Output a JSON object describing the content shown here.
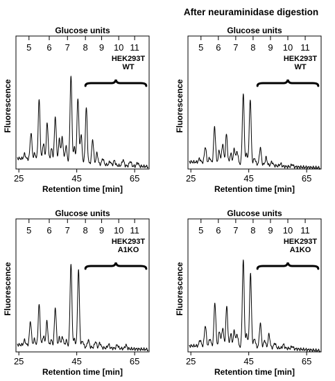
{
  "figure": {
    "right_column_title": "After neuraminidase digestion"
  },
  "chart_data": [
    {
      "type": "line",
      "panel": "top-left",
      "title": "Glucose units",
      "gu_ticks": [
        "5",
        "6",
        "7",
        "8",
        "9",
        "10",
        "11"
      ],
      "gu_tick_rt": [
        28.5,
        35.5,
        41.8,
        48.0,
        53.6,
        59.5,
        65.0
      ],
      "xlabel": "Retention time [min]",
      "ylabel": "Fluorescence",
      "x_ticks": [
        25,
        45,
        65
      ],
      "xlim": [
        24,
        70
      ],
      "ylim": [
        0,
        1
      ],
      "sample_label": [
        "HEK293T",
        "WT"
      ],
      "bracket_rt": [
        48,
        69
      ],
      "baseline": [
        [
          24,
          0.09
        ],
        [
          35,
          0.07
        ],
        [
          48,
          0.05
        ],
        [
          58,
          0.03
        ],
        [
          70,
          0.02
        ]
      ],
      "peaks": [
        {
          "rt": 27.0,
          "h": 0.04
        },
        {
          "rt": 29.2,
          "h": 0.22
        },
        {
          "rt": 30.5,
          "h": 0.05
        },
        {
          "rt": 32.0,
          "h": 0.5
        },
        {
          "rt": 33.5,
          "h": 0.14
        },
        {
          "rt": 34.8,
          "h": 0.31
        },
        {
          "rt": 36.3,
          "h": 0.1
        },
        {
          "rt": 37.6,
          "h": 0.37
        },
        {
          "rt": 39.0,
          "h": 0.18
        },
        {
          "rt": 40.0,
          "h": 0.2
        },
        {
          "rt": 41.3,
          "h": 0.13
        },
        {
          "rt": 43.0,
          "h": 0.72
        },
        {
          "rt": 44.2,
          "h": 0.12
        },
        {
          "rt": 45.4,
          "h": 0.54
        },
        {
          "rt": 46.5,
          "h": 0.23
        },
        {
          "rt": 48.3,
          "h": 0.46
        },
        {
          "rt": 50.5,
          "h": 0.2
        },
        {
          "rt": 52.0,
          "h": 0.09
        },
        {
          "rt": 54.0,
          "h": 0.05
        },
        {
          "rt": 56.5,
          "h": 0.03
        },
        {
          "rt": 58.0,
          "h": 0.04
        },
        {
          "rt": 61.0,
          "h": 0.05
        },
        {
          "rt": 63.5,
          "h": 0.04
        },
        {
          "rt": 66.0,
          "h": 0.03
        }
      ]
    },
    {
      "type": "line",
      "panel": "top-right",
      "title": "Glucose units",
      "gu_ticks": [
        "5",
        "6",
        "7",
        "8",
        "9",
        "10",
        "11"
      ],
      "gu_tick_rt": [
        28.5,
        34.5,
        40.5,
        46.5,
        52.5,
        58.5,
        64.5
      ],
      "xlabel": "Retention time [min]",
      "ylabel": "Fluorescence",
      "x_ticks": [
        25,
        45,
        65
      ],
      "xlim": [
        24,
        70
      ],
      "ylim": [
        0,
        1
      ],
      "sample_label": [
        "HEK293T",
        "WT"
      ],
      "bracket_rt": [
        48,
        69
      ],
      "baseline": [
        [
          24,
          0.06
        ],
        [
          35,
          0.05
        ],
        [
          48,
          0.04
        ],
        [
          58,
          0.02
        ],
        [
          70,
          0.01
        ]
      ],
      "peaks": [
        {
          "rt": 28.0,
          "h": 0.03
        },
        {
          "rt": 30.0,
          "h": 0.13
        },
        {
          "rt": 31.5,
          "h": 0.04
        },
        {
          "rt": 33.2,
          "h": 0.3
        },
        {
          "rt": 34.8,
          "h": 0.1
        },
        {
          "rt": 36.0,
          "h": 0.16
        },
        {
          "rt": 37.3,
          "h": 0.24
        },
        {
          "rt": 38.8,
          "h": 0.08
        },
        {
          "rt": 40.0,
          "h": 0.12
        },
        {
          "rt": 41.0,
          "h": 0.1
        },
        {
          "rt": 43.1,
          "h": 0.58
        },
        {
          "rt": 44.3,
          "h": 0.08
        },
        {
          "rt": 45.5,
          "h": 0.54
        },
        {
          "rt": 47.0,
          "h": 0.05
        },
        {
          "rt": 49.0,
          "h": 0.14
        },
        {
          "rt": 51.0,
          "h": 0.06
        },
        {
          "rt": 53.0,
          "h": 0.03
        },
        {
          "rt": 56.0,
          "h": 0.02
        },
        {
          "rt": 60.0,
          "h": 0.02
        }
      ]
    },
    {
      "type": "line",
      "panel": "bottom-left",
      "title": "Glucose units",
      "gu_ticks": [
        "5",
        "6",
        "7",
        "8",
        "9",
        "10",
        "11"
      ],
      "gu_tick_rt": [
        28.5,
        35.5,
        41.8,
        48.0,
        53.6,
        59.5,
        65.0
      ],
      "xlabel": "Retention time [min]",
      "ylabel": "Fluorescence",
      "x_ticks": [
        25,
        45,
        65
      ],
      "xlim": [
        24,
        70
      ],
      "ylim": [
        0,
        1
      ],
      "sample_label": [
        "HEK293T",
        "A1KO"
      ],
      "bracket_rt": [
        48,
        69
      ],
      "baseline": [
        [
          24,
          0.06
        ],
        [
          35,
          0.05
        ],
        [
          48,
          0.04
        ],
        [
          58,
          0.03
        ],
        [
          70,
          0.02
        ]
      ],
      "peaks": [
        {
          "rt": 27.0,
          "h": 0.04
        },
        {
          "rt": 29.0,
          "h": 0.2
        },
        {
          "rt": 30.4,
          "h": 0.05
        },
        {
          "rt": 32.0,
          "h": 0.34
        },
        {
          "rt": 33.5,
          "h": 0.08
        },
        {
          "rt": 34.7,
          "h": 0.2
        },
        {
          "rt": 36.2,
          "h": 0.05
        },
        {
          "rt": 37.6,
          "h": 0.32
        },
        {
          "rt": 39.0,
          "h": 0.07
        },
        {
          "rt": 40.1,
          "h": 0.08
        },
        {
          "rt": 41.4,
          "h": 0.05
        },
        {
          "rt": 43.0,
          "h": 0.69
        },
        {
          "rt": 44.2,
          "h": 0.06
        },
        {
          "rt": 45.6,
          "h": 0.64
        },
        {
          "rt": 47.0,
          "h": 0.05
        },
        {
          "rt": 49.0,
          "h": 0.06
        },
        {
          "rt": 51.5,
          "h": 0.05
        },
        {
          "rt": 53.0,
          "h": 0.04
        },
        {
          "rt": 56.0,
          "h": 0.03
        },
        {
          "rt": 59.0,
          "h": 0.03
        },
        {
          "rt": 62.0,
          "h": 0.03
        }
      ]
    },
    {
      "type": "line",
      "panel": "bottom-right",
      "title": "Glucose units",
      "gu_ticks": [
        "5",
        "6",
        "7",
        "8",
        "9",
        "10",
        "11"
      ],
      "gu_tick_rt": [
        28.5,
        34.5,
        40.5,
        46.5,
        52.5,
        58.5,
        64.5
      ],
      "xlabel": "Retention time [min]",
      "ylabel": "Fluorescence",
      "x_ticks": [
        25,
        45,
        65
      ],
      "xlim": [
        24,
        70
      ],
      "ylim": [
        0,
        1
      ],
      "sample_label": [
        "HEK293T",
        "A1KO"
      ],
      "bracket_rt": [
        48,
        69
      ],
      "baseline": [
        [
          24,
          0.05
        ],
        [
          35,
          0.05
        ],
        [
          48,
          0.04
        ],
        [
          58,
          0.03
        ],
        [
          70,
          0.01
        ]
      ],
      "peaks": [
        {
          "rt": 28.2,
          "h": 0.05
        },
        {
          "rt": 30.0,
          "h": 0.17
        },
        {
          "rt": 31.6,
          "h": 0.06
        },
        {
          "rt": 33.3,
          "h": 0.36
        },
        {
          "rt": 34.9,
          "h": 0.12
        },
        {
          "rt": 36.0,
          "h": 0.15
        },
        {
          "rt": 37.4,
          "h": 0.33
        },
        {
          "rt": 38.8,
          "h": 0.1
        },
        {
          "rt": 40.0,
          "h": 0.13
        },
        {
          "rt": 41.0,
          "h": 0.1
        },
        {
          "rt": 43.1,
          "h": 0.72
        },
        {
          "rt": 44.3,
          "h": 0.1
        },
        {
          "rt": 45.6,
          "h": 0.61
        },
        {
          "rt": 47.0,
          "h": 0.07
        },
        {
          "rt": 49.0,
          "h": 0.2
        },
        {
          "rt": 50.5,
          "h": 0.06
        },
        {
          "rt": 52.0,
          "h": 0.11
        },
        {
          "rt": 54.0,
          "h": 0.04
        },
        {
          "rt": 57.0,
          "h": 0.03
        },
        {
          "rt": 60.0,
          "h": 0.02
        }
      ]
    }
  ]
}
